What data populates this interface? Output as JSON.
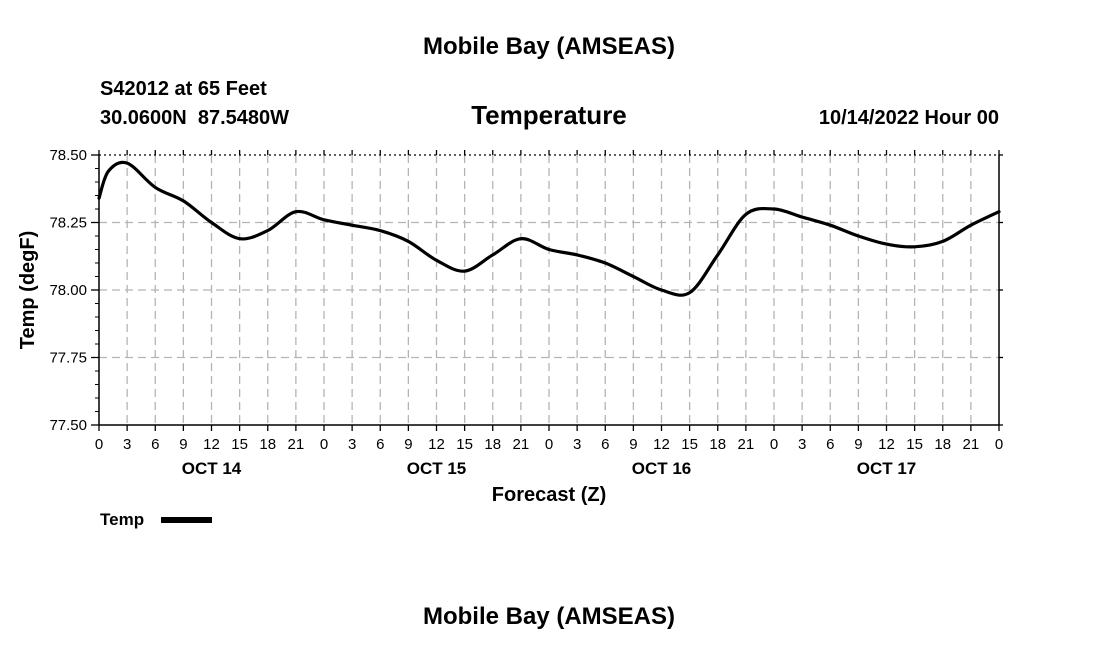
{
  "page": {
    "title_top": "Mobile Bay (AMSEAS)",
    "station": "S42012 at 65 Feet",
    "coords": "30.0600N  87.5480W",
    "subtitle": "Temperature",
    "datetime": "10/14/2022 Hour 00",
    "title_bottom": "Mobile Bay (AMSEAS)"
  },
  "chart_data": {
    "type": "line",
    "title": "Temperature",
    "xlabel": "Forecast (Z)",
    "ylabel": "Temp (degF)",
    "xlim": [
      0,
      96
    ],
    "ylim": [
      77.5,
      78.5
    ],
    "y_ticks": [
      77.5,
      77.75,
      78.0,
      78.25,
      78.5
    ],
    "y_tick_labels": [
      "77.50",
      "77.75",
      "78.00",
      "78.25",
      "78.50"
    ],
    "x_ticks": [
      0,
      3,
      6,
      9,
      12,
      15,
      18,
      21,
      24,
      27,
      30,
      33,
      36,
      39,
      42,
      45,
      48,
      51,
      54,
      57,
      60,
      63,
      66,
      69,
      72,
      75,
      78,
      81,
      84,
      87,
      90,
      93,
      96
    ],
    "x_tick_labels": [
      "0",
      "3",
      "6",
      "9",
      "12",
      "15",
      "18",
      "21",
      "0",
      "3",
      "6",
      "9",
      "12",
      "15",
      "18",
      "21",
      "0",
      "3",
      "6",
      "9",
      "12",
      "15",
      "18",
      "21",
      "0",
      "3",
      "6",
      "9",
      "12",
      "15",
      "18",
      "21",
      "0"
    ],
    "day_labels": [
      {
        "x": 12,
        "label": "OCT 14"
      },
      {
        "x": 36,
        "label": "OCT 15"
      },
      {
        "x": 60,
        "label": "OCT 16"
      },
      {
        "x": 84,
        "label": "OCT 17"
      }
    ],
    "grid": true,
    "legend": {
      "position": "bottom-left",
      "label": "Temp"
    },
    "series": [
      {
        "name": "Temp",
        "color": "#000000",
        "x": [
          0,
          1,
          3,
          6,
          9,
          12,
          15,
          18,
          21,
          24,
          27,
          30,
          33,
          36,
          39,
          42,
          45,
          48,
          51,
          54,
          57,
          60,
          63,
          66,
          69,
          72,
          75,
          78,
          81,
          84,
          87,
          90,
          93,
          96
        ],
        "y": [
          78.34,
          78.44,
          78.47,
          78.38,
          78.33,
          78.25,
          78.19,
          78.22,
          78.29,
          78.26,
          78.24,
          78.22,
          78.18,
          78.11,
          78.07,
          78.13,
          78.19,
          78.15,
          78.13,
          78.1,
          78.05,
          78.0,
          77.99,
          78.13,
          78.28,
          78.3,
          78.27,
          78.24,
          78.2,
          78.17,
          78.16,
          78.18,
          78.24,
          78.29
        ]
      }
    ]
  }
}
